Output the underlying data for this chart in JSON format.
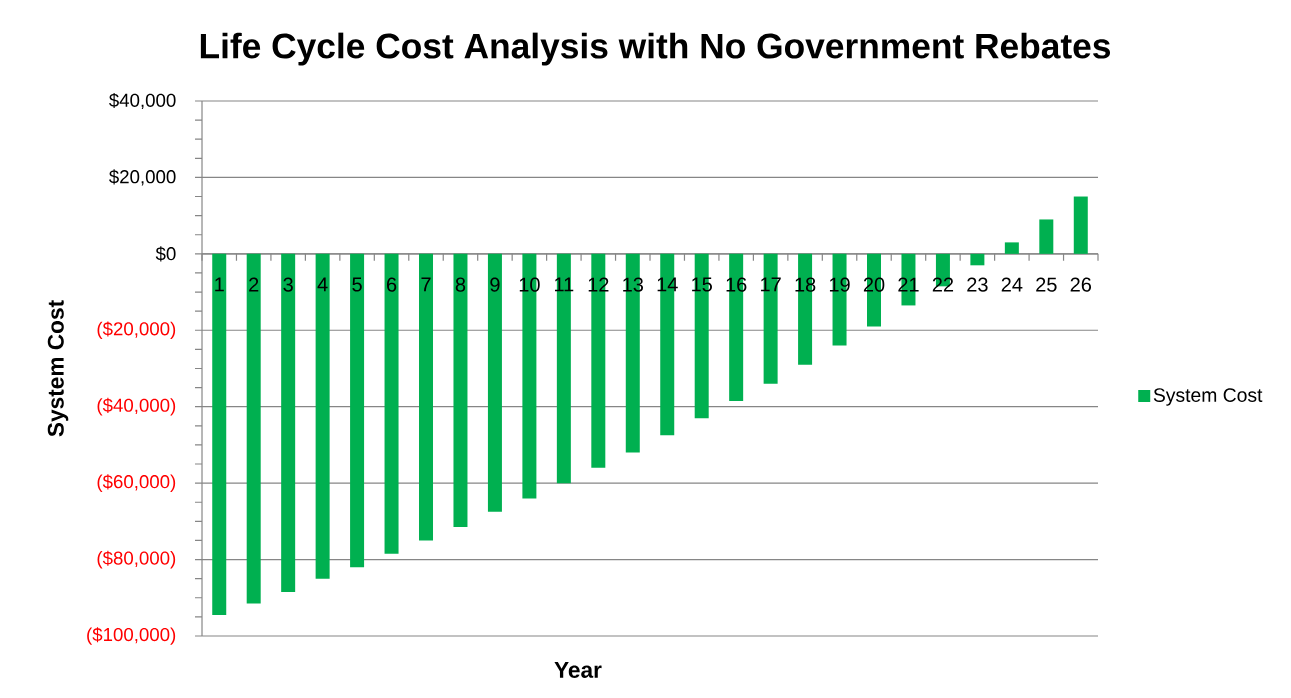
{
  "chart_data": {
    "type": "bar",
    "title": "Life Cycle Cost Analysis with No Government Rebates",
    "xlabel": "Year",
    "ylabel": "System Cost",
    "categories": [
      "1",
      "2",
      "3",
      "4",
      "5",
      "6",
      "7",
      "8",
      "9",
      "10",
      "11",
      "12",
      "13",
      "14",
      "15",
      "16",
      "17",
      "18",
      "19",
      "20",
      "21",
      "22",
      "23",
      "24",
      "25",
      "26"
    ],
    "series": [
      {
        "name": "System Cost",
        "color": "#00b050",
        "values": [
          -94500,
          -91500,
          -88500,
          -85000,
          -82000,
          -78500,
          -75000,
          -71500,
          -67500,
          -64000,
          -60000,
          -56000,
          -52000,
          -47500,
          -43000,
          -38500,
          -34000,
          -29000,
          -24000,
          -19000,
          -13500,
          -8500,
          -3000,
          3000,
          9000,
          15000
        ]
      }
    ],
    "ylim": [
      -100000,
      40000
    ],
    "yticks": [
      {
        "value": -100000,
        "label": "($100,000)"
      },
      {
        "value": -95000,
        "label": null
      },
      {
        "value": -90000,
        "label": null
      },
      {
        "value": -85000,
        "label": null
      },
      {
        "value": -80000,
        "label": "($80,000)"
      },
      {
        "value": -75000,
        "label": null
      },
      {
        "value": -70000,
        "label": null
      },
      {
        "value": -65000,
        "label": null
      },
      {
        "value": -60000,
        "label": "($60,000)"
      },
      {
        "value": -55000,
        "label": null
      },
      {
        "value": -50000,
        "label": null
      },
      {
        "value": -45000,
        "label": null
      },
      {
        "value": -40000,
        "label": "($40,000)"
      },
      {
        "value": -35000,
        "label": null
      },
      {
        "value": -30000,
        "label": null
      },
      {
        "value": -25000,
        "label": null
      },
      {
        "value": -20000,
        "label": "($20,000)"
      },
      {
        "value": -15000,
        "label": null
      },
      {
        "value": -10000,
        "label": null
      },
      {
        "value": -5000,
        "label": null
      },
      {
        "value": 0,
        "label": "$0"
      },
      {
        "value": 5000,
        "label": null
      },
      {
        "value": 10000,
        "label": null
      },
      {
        "value": 15000,
        "label": null
      },
      {
        "value": 20000,
        "label": "$20,000"
      },
      {
        "value": 25000,
        "label": null
      },
      {
        "value": 30000,
        "label": null
      },
      {
        "value": 35000,
        "label": null
      },
      {
        "value": 40000,
        "label": "$40,000"
      }
    ],
    "grid": "y",
    "legend": "right"
  }
}
